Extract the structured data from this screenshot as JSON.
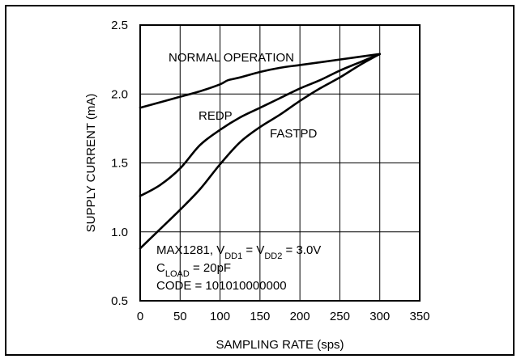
{
  "chart_data": {
    "type": "line",
    "title": "",
    "xlabel": "SAMPLING RATE (sps)",
    "ylabel": "SUPPLY CURRENT (mA)",
    "xlim": [
      0,
      350
    ],
    "ylim": [
      0.5,
      2.5
    ],
    "x_ticks": [
      "0",
      "50",
      "100",
      "150",
      "200",
      "250",
      "300",
      "350"
    ],
    "y_ticks": [
      "0.5",
      "1.0",
      "1.5",
      "2.0",
      "2.5"
    ],
    "grid": true,
    "series": [
      {
        "name": "NORMAL OPERATION",
        "x": [
          0,
          25,
          50,
          75,
          100,
          110,
          125,
          150,
          175,
          200,
          225,
          250,
          275,
          300
        ],
        "y": [
          1.9,
          1.94,
          1.98,
          2.02,
          2.07,
          2.1,
          2.12,
          2.16,
          2.19,
          2.21,
          2.23,
          2.25,
          2.27,
          2.29
        ]
      },
      {
        "name": "REDP",
        "x": [
          0,
          25,
          50,
          75,
          100,
          125,
          150,
          175,
          200,
          225,
          250,
          275,
          300
        ],
        "y": [
          1.26,
          1.34,
          1.46,
          1.63,
          1.74,
          1.83,
          1.9,
          1.97,
          2.04,
          2.1,
          2.17,
          2.23,
          2.29
        ]
      },
      {
        "name": "FASTPD",
        "x": [
          0,
          25,
          50,
          75,
          100,
          125,
          150,
          175,
          200,
          225,
          250,
          275,
          300
        ],
        "y": [
          0.88,
          1.02,
          1.16,
          1.31,
          1.49,
          1.65,
          1.76,
          1.85,
          1.95,
          2.04,
          2.12,
          2.21,
          2.29
        ]
      }
    ],
    "annotations": {
      "normal_label": "NORMAL OPERATION",
      "redp_label": "REDP",
      "fastpd_label": "FASTPD",
      "cond_line1_prefix": "MAX1281, V",
      "cond_line1_sub1": "DD1",
      "cond_line1_mid": " = V",
      "cond_line1_sub2": "DD2",
      "cond_line1_suffix": " = 3.0V",
      "cond_line2_prefix": "C",
      "cond_line2_sub": "LOAD",
      "cond_line2_suffix": " = 20pF",
      "cond_line3": "CODE = 101010000000"
    }
  }
}
